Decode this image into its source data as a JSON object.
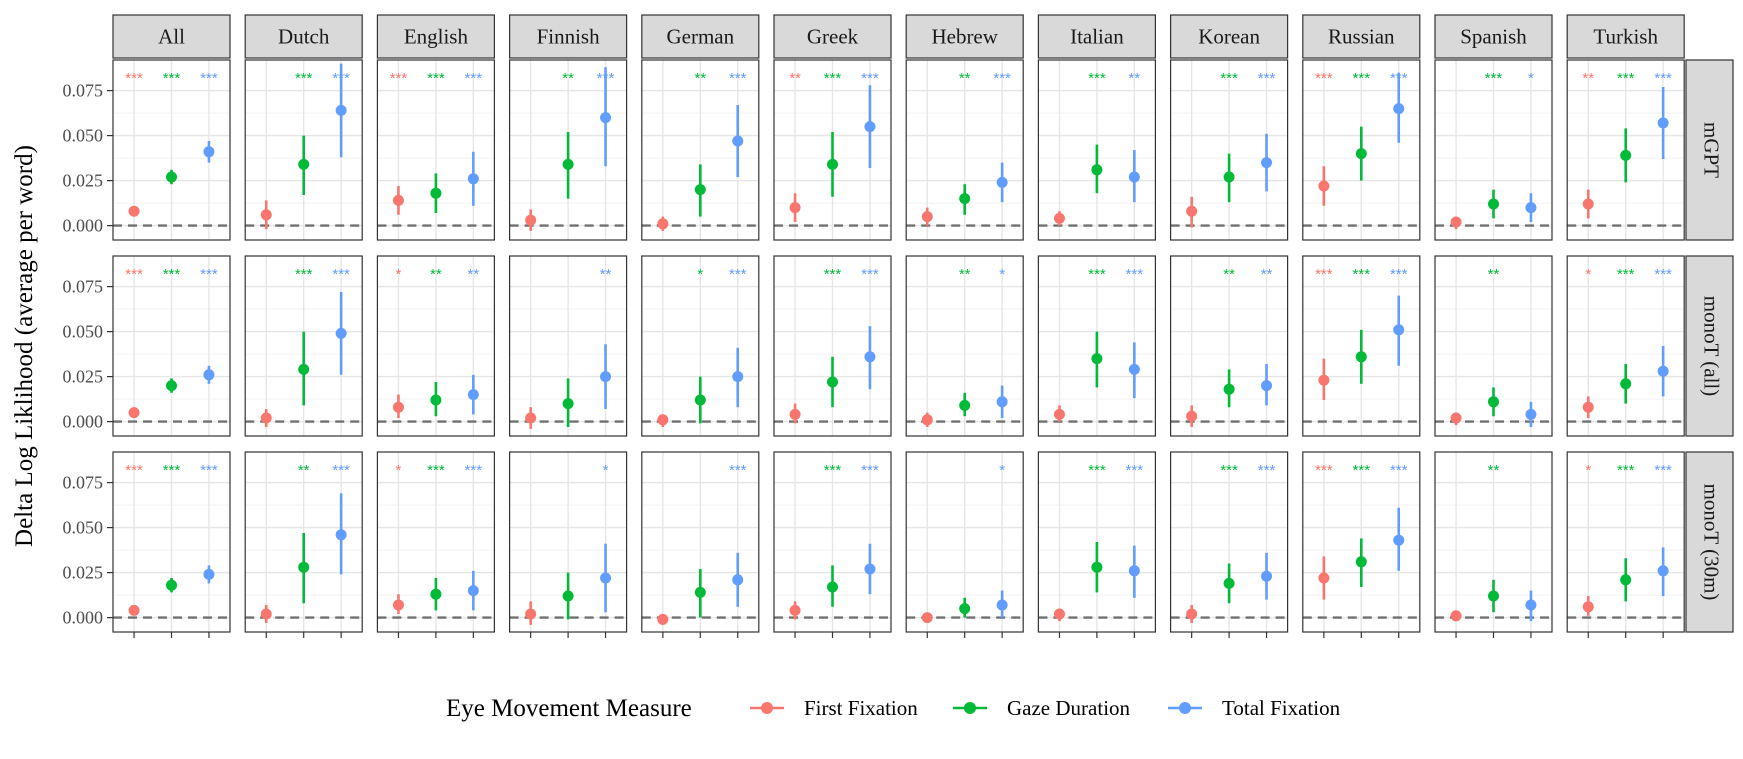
{
  "chart_data": {
    "type": "scatter",
    "subtype": "point-range faceted grid",
    "ylabel": "Delta Log Liklihood (average  per word)",
    "xlabel": "",
    "ylim": [
      -0.008,
      0.092
    ],
    "yticks": [
      0.0,
      0.025,
      0.05,
      0.075
    ],
    "ytick_labels": [
      "0.000",
      "0.025",
      "0.050",
      "0.075"
    ],
    "reference_line": 0,
    "grid": true,
    "legend": {
      "title": "Eye Movement Measure",
      "position": "bottom",
      "items": [
        {
          "name": "First Fixation",
          "color": "#F8766D"
        },
        {
          "name": "Gaze Duration",
          "color": "#00BA38"
        },
        {
          "name": "Total Fixation",
          "color": "#619CFF"
        }
      ]
    },
    "columns": [
      "All",
      "Dutch",
      "English",
      "Finnish",
      "German",
      "Greek",
      "Hebrew",
      "Italian",
      "Korean",
      "Russian",
      "Spanish",
      "Turkish"
    ],
    "rows": [
      "mGPT",
      "monoT (all)",
      "monoT (30m)"
    ],
    "measures": [
      "First Fixation",
      "Gaze Duration",
      "Total Fixation"
    ],
    "panels": [
      [
        {
          "points": [
            [
              0.008,
              0.006,
              0.01
            ],
            [
              0.027,
              0.023,
              0.031
            ],
            [
              0.041,
              0.035,
              0.047
            ]
          ],
          "sig": [
            "***",
            "***",
            "***"
          ]
        },
        {
          "points": [
            [
              0.006,
              -0.002,
              0.014
            ],
            [
              0.034,
              0.017,
              0.05
            ],
            [
              0.064,
              0.038,
              0.09
            ]
          ],
          "sig": [
            "",
            "***",
            "***"
          ]
        },
        {
          "points": [
            [
              0.014,
              0.006,
              0.022
            ],
            [
              0.018,
              0.007,
              0.029
            ],
            [
              0.026,
              0.011,
              0.041
            ]
          ],
          "sig": [
            "***",
            "***",
            "***"
          ]
        },
        {
          "points": [
            [
              0.003,
              -0.003,
              0.009
            ],
            [
              0.034,
              0.015,
              0.052
            ],
            [
              0.06,
              0.033,
              0.088
            ]
          ],
          "sig": [
            "",
            "**",
            "***"
          ]
        },
        {
          "points": [
            [
              0.001,
              -0.003,
              0.005
            ],
            [
              0.02,
              0.005,
              0.034
            ],
            [
              0.047,
              0.027,
              0.067
            ]
          ],
          "sig": [
            "",
            "**",
            "***"
          ]
        },
        {
          "points": [
            [
              0.01,
              0.002,
              0.018
            ],
            [
              0.034,
              0.016,
              0.052
            ],
            [
              0.055,
              0.032,
              0.078
            ]
          ],
          "sig": [
            "**",
            "***",
            "***"
          ]
        },
        {
          "points": [
            [
              0.005,
              0.0,
              0.01
            ],
            [
              0.015,
              0.006,
              0.023
            ],
            [
              0.024,
              0.013,
              0.035
            ]
          ],
          "sig": [
            "",
            "**",
            "***"
          ]
        },
        {
          "points": [
            [
              0.004,
              0.0,
              0.008
            ],
            [
              0.031,
              0.018,
              0.045
            ],
            [
              0.027,
              0.013,
              0.042
            ]
          ],
          "sig": [
            "",
            "***",
            "**"
          ]
        },
        {
          "points": [
            [
              0.008,
              -0.001,
              0.016
            ],
            [
              0.027,
              0.013,
              0.04
            ],
            [
              0.035,
              0.019,
              0.051
            ]
          ],
          "sig": [
            "",
            "***",
            "***"
          ]
        },
        {
          "points": [
            [
              0.022,
              0.011,
              0.033
            ],
            [
              0.04,
              0.025,
              0.055
            ],
            [
              0.065,
              0.046,
              0.085
            ]
          ],
          "sig": [
            "***",
            "***",
            "***"
          ]
        },
        {
          "points": [
            [
              0.002,
              -0.002,
              0.005
            ],
            [
              0.012,
              0.004,
              0.02
            ],
            [
              0.01,
              0.002,
              0.018
            ]
          ],
          "sig": [
            "",
            "***",
            "*"
          ]
        },
        {
          "points": [
            [
              0.012,
              0.004,
              0.02
            ],
            [
              0.039,
              0.024,
              0.054
            ],
            [
              0.057,
              0.037,
              0.077
            ]
          ],
          "sig": [
            "**",
            "***",
            "***"
          ]
        }
      ],
      [
        {
          "points": [
            [
              0.005,
              0.003,
              0.007
            ],
            [
              0.02,
              0.016,
              0.024
            ],
            [
              0.026,
              0.021,
              0.031
            ]
          ],
          "sig": [
            "***",
            "***",
            "***"
          ]
        },
        {
          "points": [
            [
              0.002,
              -0.003,
              0.007
            ],
            [
              0.029,
              0.009,
              0.05
            ],
            [
              0.049,
              0.026,
              0.072
            ]
          ],
          "sig": [
            "",
            "***",
            "***"
          ]
        },
        {
          "points": [
            [
              0.008,
              0.002,
              0.015
            ],
            [
              0.012,
              0.003,
              0.022
            ],
            [
              0.015,
              0.004,
              0.026
            ]
          ],
          "sig": [
            "*",
            "**",
            "**"
          ]
        },
        {
          "points": [
            [
              0.002,
              -0.004,
              0.008
            ],
            [
              0.01,
              -0.003,
              0.024
            ],
            [
              0.025,
              0.007,
              0.043
            ]
          ],
          "sig": [
            "",
            "",
            "**"
          ]
        },
        {
          "points": [
            [
              0.001,
              -0.003,
              0.004
            ],
            [
              0.012,
              -0.001,
              0.025
            ],
            [
              0.025,
              0.008,
              0.041
            ]
          ],
          "sig": [
            "",
            "*",
            "***"
          ]
        },
        {
          "points": [
            [
              0.004,
              -0.001,
              0.01
            ],
            [
              0.022,
              0.008,
              0.036
            ],
            [
              0.036,
              0.018,
              0.053
            ]
          ],
          "sig": [
            "",
            "***",
            "***"
          ]
        },
        {
          "points": [
            [
              0.001,
              -0.003,
              0.005
            ],
            [
              0.009,
              0.003,
              0.016
            ],
            [
              0.011,
              0.002,
              0.02
            ]
          ],
          "sig": [
            "",
            "**",
            "*"
          ]
        },
        {
          "points": [
            [
              0.004,
              0.0,
              0.009
            ],
            [
              0.035,
              0.019,
              0.05
            ],
            [
              0.029,
              0.013,
              0.044
            ]
          ],
          "sig": [
            "",
            "***",
            "***"
          ]
        },
        {
          "points": [
            [
              0.003,
              -0.003,
              0.009
            ],
            [
              0.018,
              0.008,
              0.029
            ],
            [
              0.02,
              0.009,
              0.032
            ]
          ],
          "sig": [
            "",
            "**",
            "**"
          ]
        },
        {
          "points": [
            [
              0.023,
              0.012,
              0.035
            ],
            [
              0.036,
              0.021,
              0.051
            ],
            [
              0.051,
              0.031,
              0.07
            ]
          ],
          "sig": [
            "***",
            "***",
            "***"
          ]
        },
        {
          "points": [
            [
              0.002,
              -0.002,
              0.005
            ],
            [
              0.011,
              0.003,
              0.019
            ],
            [
              0.004,
              -0.003,
              0.011
            ]
          ],
          "sig": [
            "",
            "**",
            ""
          ]
        },
        {
          "points": [
            [
              0.008,
              0.002,
              0.014
            ],
            [
              0.021,
              0.01,
              0.032
            ],
            [
              0.028,
              0.014,
              0.042
            ]
          ],
          "sig": [
            "*",
            "***",
            "***"
          ]
        }
      ],
      [
        {
          "points": [
            [
              0.004,
              0.002,
              0.006
            ],
            [
              0.018,
              0.014,
              0.022
            ],
            [
              0.024,
              0.019,
              0.029
            ]
          ],
          "sig": [
            "***",
            "***",
            "***"
          ]
        },
        {
          "points": [
            [
              0.002,
              -0.003,
              0.007
            ],
            [
              0.028,
              0.008,
              0.047
            ],
            [
              0.046,
              0.024,
              0.069
            ]
          ],
          "sig": [
            "",
            "**",
            "***"
          ]
        },
        {
          "points": [
            [
              0.007,
              0.002,
              0.013
            ],
            [
              0.013,
              0.004,
              0.022
            ],
            [
              0.015,
              0.004,
              0.026
            ]
          ],
          "sig": [
            "*",
            "***",
            "***"
          ]
        },
        {
          "points": [
            [
              0.002,
              -0.004,
              0.009
            ],
            [
              0.012,
              -0.001,
              0.025
            ],
            [
              0.022,
              0.003,
              0.041
            ]
          ],
          "sig": [
            "",
            "",
            "*"
          ]
        },
        {
          "points": [
            [
              -0.001,
              -0.004,
              0.002
            ],
            [
              0.014,
              0.0,
              0.027
            ],
            [
              0.021,
              0.006,
              0.036
            ]
          ],
          "sig": [
            "",
            "",
            "***"
          ]
        },
        {
          "points": [
            [
              0.004,
              -0.001,
              0.009
            ],
            [
              0.017,
              0.006,
              0.029
            ],
            [
              0.027,
              0.013,
              0.041
            ]
          ],
          "sig": [
            "",
            "***",
            "***"
          ]
        },
        {
          "points": [
            [
              0.0,
              -0.002,
              0.002
            ],
            [
              0.005,
              0.0,
              0.011
            ],
            [
              0.007,
              0.0,
              0.015
            ]
          ],
          "sig": [
            "",
            "",
            "*"
          ]
        },
        {
          "points": [
            [
              0.002,
              -0.002,
              0.005
            ],
            [
              0.028,
              0.014,
              0.042
            ],
            [
              0.026,
              0.011,
              0.04
            ]
          ],
          "sig": [
            "",
            "***",
            "***"
          ]
        },
        {
          "points": [
            [
              0.002,
              -0.003,
              0.007
            ],
            [
              0.019,
              0.008,
              0.03
            ],
            [
              0.023,
              0.01,
              0.036
            ]
          ],
          "sig": [
            "",
            "***",
            "***"
          ]
        },
        {
          "points": [
            [
              0.022,
              0.01,
              0.034
            ],
            [
              0.031,
              0.017,
              0.044
            ],
            [
              0.043,
              0.026,
              0.061
            ]
          ],
          "sig": [
            "***",
            "***",
            "***"
          ]
        },
        {
          "points": [
            [
              0.001,
              -0.002,
              0.004
            ],
            [
              0.012,
              0.003,
              0.021
            ],
            [
              0.007,
              -0.002,
              0.015
            ]
          ],
          "sig": [
            "",
            "**",
            ""
          ]
        },
        {
          "points": [
            [
              0.006,
              0.001,
              0.012
            ],
            [
              0.021,
              0.009,
              0.033
            ],
            [
              0.026,
              0.012,
              0.039
            ]
          ],
          "sig": [
            "*",
            "***",
            "***"
          ]
        }
      ]
    ]
  }
}
